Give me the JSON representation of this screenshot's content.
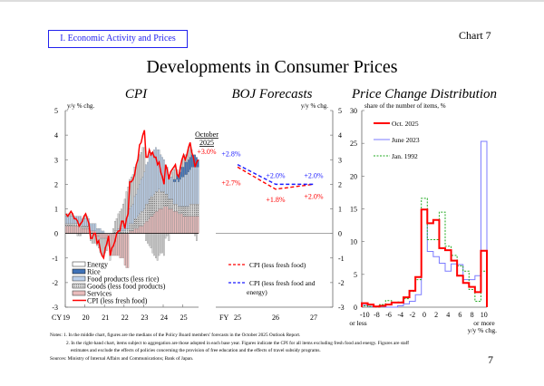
{
  "header": {
    "section_label": "I. Economic Activity and Prices",
    "chart_number": "Chart 7",
    "title": "Developments in Consumer Prices"
  },
  "footer": {
    "notes_prefix": "Notes:",
    "note1": "1. In the middle chart, figures are the medians of the Policy Board members' forecasts in the October 2025 Outlook Report.",
    "note2a": "2. In the right-hand chart, items subject to aggregation are those adopted in each base year. Figures indicate the CPI for all items excluding fresh food and energy. Figures are staff",
    "note2b": "estimates and exclude the effects of policies concerning the provision of free education and the effects of travel subsidy programs.",
    "sources": "Sources: Ministry of Internal Affairs and Communications; Bank of Japan.",
    "page_number": "7"
  },
  "colors": {
    "energy": "#d4d4d4",
    "rice": "#3f72b8",
    "food": "#bcd0ea",
    "goods": "#b8b8b8",
    "services": "#e9bcbc",
    "cpi_line": "#ff0000",
    "forecast_blue": "#1a1aff",
    "dist_oct2025": "#ff0000",
    "dist_jun2023": "#7b7bff",
    "dist_jan1992": "#22aa22"
  },
  "chart_data": [
    {
      "type": "bar",
      "stacked": true,
      "title": "CPI",
      "ylabel": "y/y % chg.",
      "ylim": [
        -3,
        5
      ],
      "yticks": [
        "5",
        "4",
        "3",
        "2",
        "1",
        "0",
        "-1",
        "-2",
        "-3"
      ],
      "x_prefix": "CY",
      "xticks": [
        "19",
        "20",
        "21",
        "22",
        "23",
        "24",
        "25"
      ],
      "period": [
        "2019-01",
        "2025-10"
      ],
      "frequency": "monthly",
      "annotation": {
        "line1": "October",
        "line2": "2025",
        "value": "+3.0%"
      },
      "series": [
        {
          "name": "Energy",
          "key": "energy",
          "values": [
            0.1,
            0.1,
            0.1,
            0.1,
            0.1,
            0,
            0,
            -0.1,
            -0.1,
            -0.1,
            0,
            0.1,
            0.2,
            0.1,
            0,
            -0.3,
            -0.4,
            -0.4,
            -0.4,
            -0.4,
            -0.5,
            -0.6,
            -0.7,
            -0.7,
            -0.6,
            -0.5,
            -0.3,
            -0.2,
            0,
            0.2,
            0.4,
            0.5,
            0.6,
            0.7,
            0.8,
            0.9,
            1.0,
            1.1,
            1.2,
            1.2,
            1.2,
            1.2,
            1.2,
            1.2,
            1.2,
            1.2,
            1.1,
            1.2,
            1.0,
            -0.3,
            -0.4,
            -0.5,
            -0.6,
            -0.8,
            -0.9,
            -1.0,
            -1.1,
            -0.9,
            -0.8,
            -0.8,
            -0.9,
            -0.2,
            -0.1,
            -0.3,
            0,
            0.2,
            0.4,
            0.5,
            0.2,
            0,
            0.2,
            0.3,
            0.4,
            0.3,
            0.3,
            0.4,
            0.5,
            0.2,
            0,
            -0.1,
            -0.3,
            0
          ]
        },
        {
          "name": "Rice",
          "key": "rice",
          "values": [
            0,
            0,
            0,
            0,
            0,
            0,
            0,
            0,
            0,
            0,
            0,
            0,
            0,
            0,
            0,
            0,
            0,
            0,
            0,
            0,
            0,
            0,
            0,
            0,
            0,
            0,
            0,
            0,
            0,
            0,
            0,
            0,
            0,
            0,
            0,
            0,
            0,
            0,
            0,
            0,
            0,
            0,
            0,
            0,
            0,
            0,
            0,
            0,
            0,
            0,
            0,
            0,
            0,
            0,
            0,
            0,
            0,
            0,
            0,
            0,
            0,
            0,
            0,
            0,
            0,
            0,
            0.1,
            0.1,
            0.2,
            0.3,
            0.3,
            0.4,
            0.4,
            0.5,
            0.5,
            0.5,
            0.5,
            0.5,
            0.5,
            0.5,
            0.4,
            0.3
          ]
        },
        {
          "name": "Food products (less rice)",
          "key": "food",
          "values": [
            0.3,
            0.3,
            0.3,
            0.3,
            0.3,
            0.3,
            0.3,
            0.3,
            0.3,
            0.3,
            0.3,
            0.3,
            0.3,
            0.3,
            0.3,
            0.3,
            0.3,
            0.3,
            0.3,
            0.2,
            0.2,
            0.2,
            0.1,
            0.1,
            0,
            0,
            0,
            0,
            0,
            0,
            0,
            0,
            0.1,
            0.1,
            0.1,
            0.2,
            0.3,
            0.4,
            0.5,
            0.6,
            0.7,
            0.8,
            0.9,
            1.0,
            1.1,
            1.2,
            1.3,
            1.4,
            1.5,
            1.6,
            1.7,
            1.8,
            1.8,
            1.8,
            1.8,
            1.8,
            1.7,
            1.6,
            1.5,
            1.4,
            1.3,
            1.2,
            1.1,
            1.0,
            0.9,
            0.9,
            0.9,
            0.9,
            1.0,
            1.0,
            1.1,
            1.2,
            1.2,
            1.3,
            1.3,
            1.4,
            1.4,
            1.5,
            1.5,
            1.5,
            1.5,
            1.5
          ]
        },
        {
          "name": "Goods (less food products)",
          "key": "goods",
          "values": [
            0.1,
            0.1,
            0.1,
            0.1,
            0.1,
            0.1,
            0.1,
            0.1,
            0.1,
            0.1,
            0.1,
            0.1,
            0.1,
            0.1,
            0.1,
            0,
            0,
            0,
            0,
            0,
            0,
            0,
            0,
            0,
            0,
            0,
            0,
            0,
            0,
            0,
            0.1,
            0.1,
            0.1,
            0.1,
            0.1,
            0.1,
            0.1,
            0.2,
            0.2,
            0.3,
            0.3,
            0.3,
            0.4,
            0.4,
            0.5,
            0.5,
            0.6,
            0.6,
            0.6,
            0.7,
            0.7,
            0.8,
            0.8,
            0.8,
            0.8,
            0.8,
            0.8,
            0.8,
            0.7,
            0.7,
            0.6,
            0.5,
            0.5,
            0.4,
            0.4,
            0.4,
            0.3,
            0.3,
            0.3,
            0.3,
            0.3,
            0.3,
            0.4,
            0.4,
            0.4,
            0.4,
            0.5,
            0.5,
            0.5,
            0.5,
            0.5,
            0.5
          ]
        },
        {
          "name": "Services",
          "key": "services",
          "values": [
            0.3,
            0.3,
            0.3,
            0.3,
            0.3,
            0.3,
            0.3,
            0.3,
            0.3,
            0.3,
            0.2,
            0.2,
            0.2,
            0.2,
            0.2,
            0.1,
            0.1,
            0.1,
            0.1,
            -0.1,
            -0.1,
            -0.2,
            -0.2,
            -0.2,
            -0.2,
            -0.2,
            -0.2,
            -0.9,
            -0.9,
            -0.9,
            -0.9,
            -0.9,
            -0.9,
            -1.0,
            -1.0,
            -1.0,
            -1.3,
            -1.4,
            -1.4,
            0.1,
            0.1,
            0.1,
            0.2,
            0.2,
            0.2,
            0.3,
            0.3,
            0.3,
            0.4,
            0.5,
            0.5,
            0.6,
            0.7,
            0.7,
            0.8,
            0.9,
            0.9,
            1.0,
            1.0,
            1.0,
            1.1,
            1.1,
            1.1,
            1.0,
            1.0,
            1.0,
            0.9,
            0.9,
            0.9,
            0.8,
            0.8,
            0.8,
            0.7,
            0.7,
            0.7,
            0.7,
            0.7,
            0.7,
            0.7,
            0.7,
            0.7,
            0.7
          ]
        },
        {
          "name": "CPI (less fresh food)",
          "key": "cpi",
          "type": "line",
          "values": [
            0.8,
            0.7,
            0.8,
            0.9,
            0.8,
            0.6,
            0.6,
            0.5,
            0.3,
            0.4,
            0.5,
            0.7,
            0.8,
            0.6,
            0.4,
            -0.2,
            -0.2,
            0,
            0,
            -0.4,
            -0.3,
            -0.7,
            -0.9,
            -1.0,
            -0.6,
            -0.4,
            -0.1,
            -0.9,
            -0.6,
            -0.5,
            -0.3,
            0,
            0.1,
            0.1,
            0.5,
            0.5,
            0.2,
            0.6,
            0.8,
            2.1,
            2.1,
            2.2,
            2.4,
            2.8,
            3.0,
            3.6,
            3.7,
            4.0,
            4.2,
            3.1,
            3.1,
            3.4,
            3.2,
            3.3,
            3.1,
            3.1,
            2.8,
            2.9,
            2.5,
            2.3,
            2.0,
            2.8,
            2.6,
            2.2,
            2.5,
            2.6,
            2.7,
            2.8,
            2.4,
            2.3,
            2.7,
            3.0,
            3.2,
            3.0,
            3.2,
            3.5,
            3.7,
            3.3,
            3.1,
            2.7,
            2.9,
            3.0
          ]
        }
      ]
    },
    {
      "type": "line",
      "title": "BOJ Forecasts",
      "ylabel": "y/y % chg.",
      "ylim": [
        -3,
        5
      ],
      "yticks": [
        "5",
        "4",
        "3",
        "2",
        "1",
        "0",
        "-1",
        "-2",
        "-3"
      ],
      "x_prefix": "FY",
      "categories": [
        "25",
        "26",
        "27"
      ],
      "series": [
        {
          "name": "CPI (less fresh food)",
          "values": [
            2.7,
            1.8,
            2.0
          ],
          "labels": [
            "+2.7%",
            "+1.8%",
            "+2.0%"
          ],
          "style": "dashed-red"
        },
        {
          "name": "CPI (less fresh food and energy)",
          "name_line1": "CPI (less fresh food and",
          "name_line2": "energy)",
          "values": [
            2.8,
            2.0,
            2.0
          ],
          "labels": [
            "+2.8%",
            "+2.0%",
            "+2.0%"
          ],
          "style": "dashed-blue"
        }
      ]
    },
    {
      "type": "line",
      "step": true,
      "title": "Price Change Distribution",
      "ylabel": "share of the number of items, %",
      "xlabel": "y/y % chg.",
      "ylim": [
        0,
        30
      ],
      "yticks": [
        "30",
        "25",
        "20",
        "15",
        "10",
        "5",
        "0"
      ],
      "xticks": [
        "-10",
        "-8",
        "-6",
        "-4",
        "-2",
        "0",
        "2",
        "4",
        "6",
        "8",
        "10"
      ],
      "xtick_note_left": "or less",
      "xtick_note_right": "or more",
      "x": [
        -10,
        -9,
        -8,
        -7,
        -6,
        -5,
        -4,
        -3,
        -2,
        -1,
        0,
        1,
        2,
        3,
        4,
        5,
        6,
        7,
        8,
        9,
        10
      ],
      "series": [
        {
          "name": "Oct. 2025",
          "key": "oct2025",
          "values": [
            0.6,
            0.4,
            0.1,
            0.2,
            0.4,
            0.7,
            0.7,
            1.5,
            2.5,
            4.6,
            14.9,
            12.8,
            13.3,
            9.0,
            8.7,
            7.1,
            4.8,
            3.7,
            3.1,
            2.3,
            8.6
          ]
        },
        {
          "name": "June 2023",
          "key": "jun2023",
          "values": [
            0.3,
            0.1,
            0,
            0.1,
            0,
            0,
            0.2,
            0.5,
            0.9,
            1.9,
            14.9,
            8.5,
            7.7,
            6.7,
            5.5,
            6.6,
            6.5,
            4.2,
            4.2,
            4.8,
            25.3
          ]
        },
        {
          "name": "Jan. 1992",
          "key": "jan1992",
          "values": [
            0.2,
            0.1,
            0,
            0.4,
            1.0,
            0.7,
            0.8,
            1.3,
            2.4,
            4.2,
            16.6,
            10.3,
            10.3,
            14.5,
            9.3,
            7.9,
            6.3,
            5.5,
            2.7,
            0.9,
            5.5
          ]
        }
      ]
    }
  ]
}
